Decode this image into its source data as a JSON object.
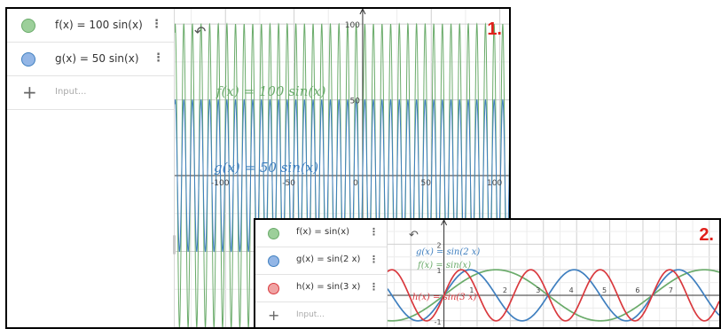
{
  "colors": {
    "green": "#6aab6a",
    "blue": "#3f7fbf",
    "red": "#d9393e",
    "dot_green": "#9ccf9a",
    "dot_blue": "#93b6e6",
    "dot_red": "#f0a3a3"
  },
  "icons": {
    "undo": "undo-icon",
    "more": "more-vertical-icon",
    "add": "plus-icon"
  },
  "panel1": {
    "number": "1.",
    "undo_glyph": "↶",
    "menu_glyph": "⋮",
    "plus_glyph": "+",
    "input_placeholder": "Input...",
    "expressions": [
      {
        "text": "f(x) = 100 sin(x)",
        "color": "green"
      },
      {
        "text": "g(x) = 50 sin(x)",
        "color": "blue"
      }
    ],
    "labels": {
      "f": "f(x)  =  100 sin(x)",
      "g": "g(x)  =  50 sin(x)"
    },
    "graph": {
      "x_range": [
        -137,
        108
      ],
      "y_range": [
        -100,
        110
      ],
      "x_ticks": [
        -100,
        -50,
        0,
        50,
        100
      ],
      "y_ticks": [
        50,
        100
      ],
      "x_tick_labels": [
        "-100",
        "-50",
        "0",
        "50",
        "100"
      ],
      "y_tick_labels": [
        "50",
        "100"
      ],
      "functions": [
        {
          "name": "f",
          "amp": 100,
          "freq": 1,
          "color": "green"
        },
        {
          "name": "g",
          "amp": 50,
          "freq": 1,
          "color": "blue"
        }
      ]
    }
  },
  "panel2": {
    "number": "2.",
    "undo_glyph": "↶",
    "menu_glyph": "⋮",
    "plus_glyph": "+",
    "input_placeholder": "Input...",
    "expressions": [
      {
        "text": "f(x) = sin(x)",
        "color": "green"
      },
      {
        "text": "g(x) = sin(2 x)",
        "color": "blue"
      },
      {
        "text": "h(x) = sin(3 x)",
        "color": "red"
      }
    ],
    "labels": {
      "f": "f(x)  =  sin(x)",
      "g": "g(x)  =  sin(2 x)",
      "h": "h(x)  =  sin(3 x)"
    },
    "graph": {
      "x_range": [
        -1.7,
        8.3
      ],
      "y_range": [
        -1.25,
        2.95
      ],
      "x_ticks": [
        1,
        2,
        3,
        4,
        5,
        6,
        7
      ],
      "y_ticks": [
        -1,
        1,
        2
      ],
      "x_tick_labels": [
        "1",
        "2",
        "3",
        "4",
        "5",
        "6",
        "7"
      ],
      "y_tick_labels": [
        "-1",
        "1",
        "2"
      ],
      "functions": [
        {
          "name": "f",
          "amp": 1,
          "freq": 1,
          "color": "green"
        },
        {
          "name": "g",
          "amp": 1,
          "freq": 2,
          "color": "blue"
        },
        {
          "name": "h",
          "amp": 1,
          "freq": 3,
          "color": "red"
        }
      ]
    }
  }
}
